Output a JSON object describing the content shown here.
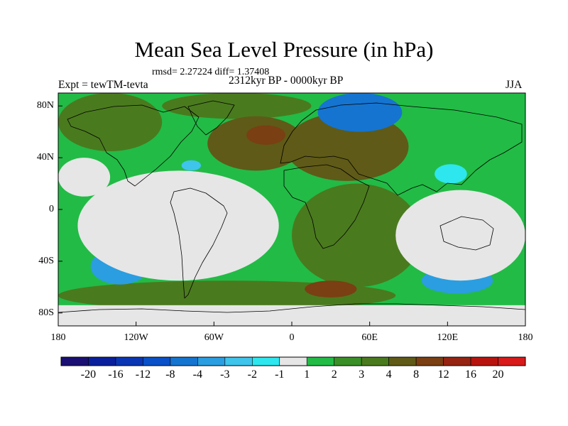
{
  "title": "Mean Sea Level Pressure (in hPa)",
  "stats_label": "rmsd= 2.27224 diff= 1.37408",
  "left_label": "Expt = tewTM-tevta",
  "center_label": "2312kyr BP - 0000kyr BP",
  "right_label": "JJA",
  "chart_data": {
    "type": "heatmap",
    "title": "Mean Sea Level Pressure (in hPa)",
    "variable": "Mean Sea Level Pressure difference",
    "units": "hPa",
    "season": "JJA",
    "lat_ticks": [
      {
        "v": 80,
        "label": "80N"
      },
      {
        "v": 40,
        "label": "40N"
      },
      {
        "v": 0,
        "label": "0"
      },
      {
        "v": -40,
        "label": "40S"
      },
      {
        "v": -80,
        "label": "80S"
      }
    ],
    "lon_ticks": [
      {
        "v": -180,
        "label": "180"
      },
      {
        "v": -120,
        "label": "120W"
      },
      {
        "v": -60,
        "label": "60W"
      },
      {
        "v": 0,
        "label": "0"
      },
      {
        "v": 60,
        "label": "60E"
      },
      {
        "v": 120,
        "label": "120E"
      },
      {
        "v": 180,
        "label": "180"
      }
    ],
    "xlim": [
      -180,
      180
    ],
    "ylim": [
      -90,
      90
    ],
    "contour_levels": [
      "-20",
      "-16",
      "-12",
      "-8",
      "-4",
      "-3",
      "-2",
      "-1",
      "1",
      "2",
      "3",
      "4",
      "8",
      "12",
      "16",
      "20"
    ],
    "colors": [
      "#1a0f73",
      "#0a1f9c",
      "#0a36b4",
      "#0a50c8",
      "#1574d0",
      "#2a9ee0",
      "#3fc4ec",
      "#2ee6ee",
      "#e6e6e6",
      "#22bb46",
      "#3a8f26",
      "#4a7a1e",
      "#5f5a17",
      "#7a3f12",
      "#962412",
      "#b8140f",
      "#d81a1a"
    ],
    "regions": [
      {
        "name": "global positive",
        "level": "1 to 2",
        "lon": [
          -180,
          180
        ],
        "lat": [
          -90,
          90
        ]
      },
      {
        "name": "north pacific and north america",
        "level": "3 to 4",
        "lon": [
          -180,
          -100
        ],
        "lat": [
          45,
          90
        ]
      },
      {
        "name": "arctic",
        "level": "3 to 4",
        "lon": [
          -100,
          15
        ],
        "lat": [
          70,
          90
        ]
      },
      {
        "name": "north atlantic",
        "level": "4 to 8",
        "lon": [
          -65,
          10
        ],
        "lat": [
          30,
          72
        ]
      },
      {
        "name": "greenland sea high",
        "level": "8 to 12",
        "lon": [
          -35,
          -5
        ],
        "lat": [
          50,
          65
        ]
      },
      {
        "name": "eurasia",
        "level": "4 to 8",
        "lon": [
          -5,
          90
        ],
        "lat": [
          22,
          75
        ]
      },
      {
        "name": "south atlantic and indian ocean",
        "level": "3 to 4",
        "lon": [
          0,
          100
        ],
        "lat": [
          -60,
          20
        ]
      },
      {
        "name": "southern ocean",
        "level": "3 to 4",
        "lon": [
          -180,
          80
        ],
        "lat": [
          -78,
          -55
        ]
      },
      {
        "name": "southern ocean high",
        "level": "8 to 12",
        "lon": [
          10,
          50
        ],
        "lat": [
          -68,
          -55
        ]
      },
      {
        "name": "arctic siberian low",
        "level": "-8 to -4",
        "lon": [
          20,
          85
        ],
        "lat": [
          60,
          90
        ]
      },
      {
        "name": "south pacific low",
        "level": "-4 to -3",
        "lon": [
          -155,
          -110
        ],
        "lat": [
          -58,
          -30
        ]
      },
      {
        "name": "south indian ocean low",
        "level": "-4 to -3",
        "lon": [
          100,
          155
        ],
        "lat": [
          -65,
          -45
        ]
      },
      {
        "name": "gulf of mexico low",
        "level": "-3 to -2",
        "lon": [
          -85,
          -70
        ],
        "lat": [
          30,
          38
        ]
      },
      {
        "name": "western pacific low",
        "level": "-2 to -1",
        "lon": [
          110,
          135
        ],
        "lat": [
          20,
          35
        ]
      },
      {
        "name": "north pacific near zero",
        "level": "-1 to 1",
        "lon": [
          -180,
          -140
        ],
        "lat": [
          10,
          40
        ]
      },
      {
        "name": "tropical pacific near zero",
        "level": "-1 to 1",
        "lon": [
          -165,
          -10
        ],
        "lat": [
          -55,
          30
        ]
      },
      {
        "name": "indian ocean near zero",
        "level": "-1 to 1",
        "lon": [
          80,
          180
        ],
        "lat": [
          -55,
          15
        ]
      },
      {
        "name": "antarctica near zero",
        "level": "-1 to 1",
        "lon": [
          -180,
          180
        ],
        "lat": [
          -90,
          -74
        ]
      }
    ]
  }
}
